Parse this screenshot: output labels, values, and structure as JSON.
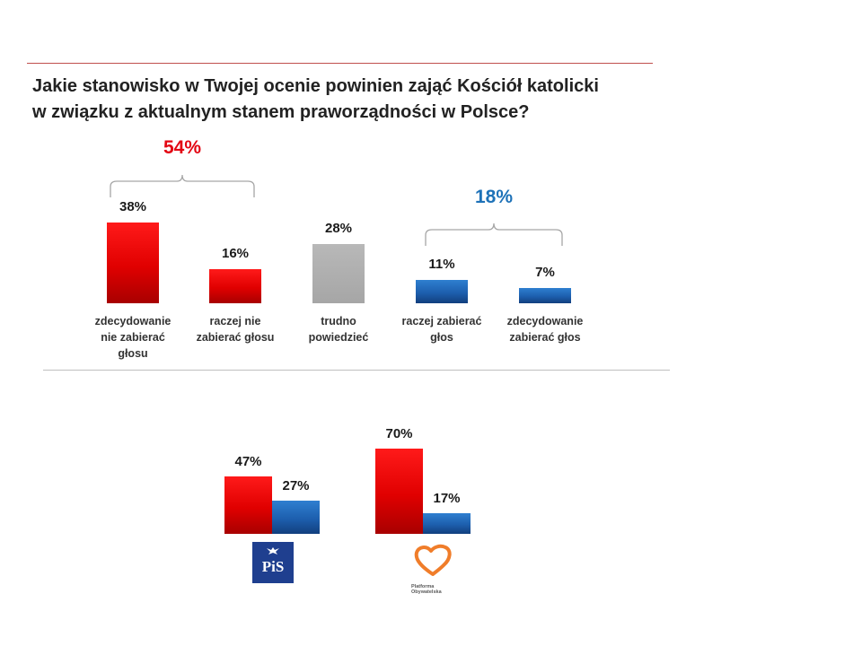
{
  "title_lines": [
    "Jakie stanowisko w Twojej ocenie powinien zająć Kościół katolicki",
    "w związku z aktualnym stanem praworządności w Polsce?"
  ],
  "groups": {
    "no_voice_total": "54%",
    "voice_total": "18%"
  },
  "chart_data": [
    {
      "type": "bar",
      "categories": [
        "zdecydowanie nie zabierać głosu",
        "raczej nie zabierać głosu",
        "trudno powiedzieć",
        "raczej zabierać głos",
        "zdecydowanie zabierać głos"
      ],
      "category_lines": [
        [
          "zdecydowanie",
          "nie zabierać",
          "głosu"
        ],
        [
          "raczej nie",
          "zabierać głosu"
        ],
        [
          "trudno",
          "powiedzieć"
        ],
        [
          "raczej zabierać",
          "głos"
        ],
        [
          "zdecydowanie",
          "zabierać głos"
        ]
      ],
      "values": [
        38,
        16,
        28,
        11,
        7
      ],
      "value_labels": [
        "38%",
        "16%",
        "28%",
        "11%",
        "7%"
      ],
      "colors": [
        "#e00000",
        "#e00000",
        "#a6a6a6",
        "#1d5fae",
        "#1d5fae"
      ],
      "ylim": [
        0,
        40
      ]
    },
    {
      "type": "bar",
      "categories": [
        "PiS",
        "Platforma Obywatelska"
      ],
      "series": [
        {
          "values": [
            47,
            70
          ],
          "value_labels": [
            "47%",
            "70%"
          ],
          "color": "#e00000"
        },
        {
          "values": [
            27,
            17
          ],
          "value_labels": [
            "27%",
            "17%"
          ],
          "color": "#1d5fae"
        }
      ],
      "ylim": [
        0,
        75
      ]
    }
  ],
  "logos": {
    "pis": {
      "text": "PiS",
      "color": "#1f3f8f"
    },
    "po": {
      "line1": "Platforma",
      "line2": "Obywatelska",
      "color": "#f07d2a"
    }
  }
}
